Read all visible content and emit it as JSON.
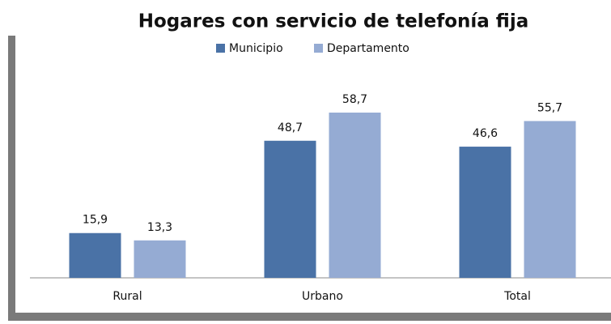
{
  "chart_data": {
    "type": "bar",
    "title": "Hogares con servicio de telefonía fija",
    "categories": [
      "Rural",
      "Urbano",
      "Total"
    ],
    "series": [
      {
        "name": "Municipio",
        "color": "#4a72a6",
        "values": [
          15.9,
          48.7,
          46.6
        ],
        "value_labels": [
          "15,9",
          "48,7",
          "46,6"
        ]
      },
      {
        "name": "Departamento",
        "color": "#95abd3",
        "values": [
          13.3,
          58.7,
          55.7
        ],
        "value_labels": [
          "13,3",
          "58,7",
          "55,7"
        ]
      }
    ],
    "legend": "top"
  }
}
